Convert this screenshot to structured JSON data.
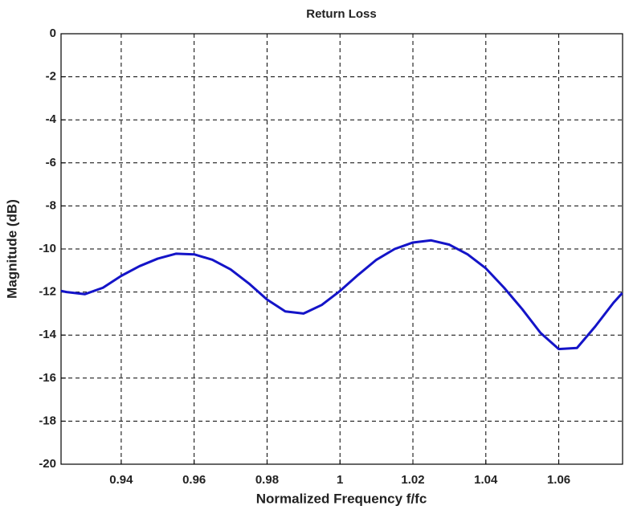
{
  "chart_data": {
    "type": "line",
    "title": "Return Loss",
    "xlabel": "Normalized Frequency f/fc",
    "ylabel": "Magnitude (dB)",
    "x": [
      0.9235,
      0.925,
      0.93,
      0.935,
      0.94,
      0.945,
      0.95,
      0.955,
      0.96,
      0.965,
      0.97,
      0.975,
      0.98,
      0.985,
      0.99,
      0.995,
      1.0,
      1.005,
      1.01,
      1.015,
      1.02,
      1.025,
      1.03,
      1.035,
      1.04,
      1.045,
      1.05,
      1.055,
      1.06,
      1.065,
      1.07,
      1.075,
      1.0774
    ],
    "values": [
      -11.95,
      -12.0,
      -12.1,
      -11.8,
      -11.25,
      -10.8,
      -10.45,
      -10.22,
      -10.25,
      -10.5,
      -10.95,
      -11.6,
      -12.35,
      -12.9,
      -13.0,
      -12.6,
      -11.95,
      -11.2,
      -10.5,
      -10.0,
      -9.7,
      -9.6,
      -9.8,
      -10.25,
      -10.9,
      -11.8,
      -12.8,
      -13.9,
      -14.65,
      -14.6,
      -13.6,
      -12.5,
      -12.05
    ],
    "color": "#1414c8",
    "xlim": [
      0.9235,
      1.0775
    ],
    "xticks": [
      0.94,
      0.96,
      0.98,
      1,
      1.02,
      1.04,
      1.06
    ],
    "ylim": [
      -20,
      0
    ],
    "yticks": [
      -20,
      -18,
      -16,
      -14,
      -12,
      -10,
      -8,
      -6,
      -4,
      -2,
      0
    ],
    "grid": true
  }
}
